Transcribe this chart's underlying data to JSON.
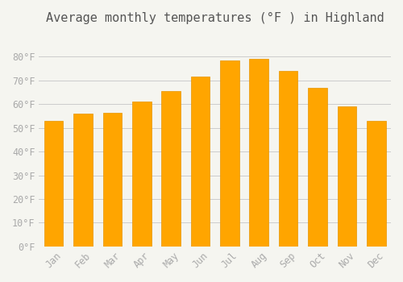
{
  "title": "Average monthly temperatures (°F ) in Highland",
  "months": [
    "Jan",
    "Feb",
    "Mar",
    "Apr",
    "May",
    "Jun",
    "Jul",
    "Aug",
    "Sep",
    "Oct",
    "Nov",
    "Dec"
  ],
  "values": [
    53,
    56,
    56.5,
    61,
    65.5,
    71.5,
    78.5,
    79,
    74,
    67,
    59,
    53
  ],
  "bar_color": "#FFA500",
  "bar_color_dark": "#E69500",
  "ylim": [
    0,
    90
  ],
  "yticks": [
    0,
    10,
    20,
    30,
    40,
    50,
    60,
    70,
    80
  ],
  "ytick_labels": [
    "0°F",
    "10°F",
    "20°F",
    "30°F",
    "40°F",
    "50°F",
    "60°F",
    "70°F",
    "80°F"
  ],
  "background_color": "#f5f5f0",
  "grid_color": "#cccccc",
  "title_fontsize": 11,
  "tick_fontsize": 8.5,
  "font_color": "#aaaaaa"
}
